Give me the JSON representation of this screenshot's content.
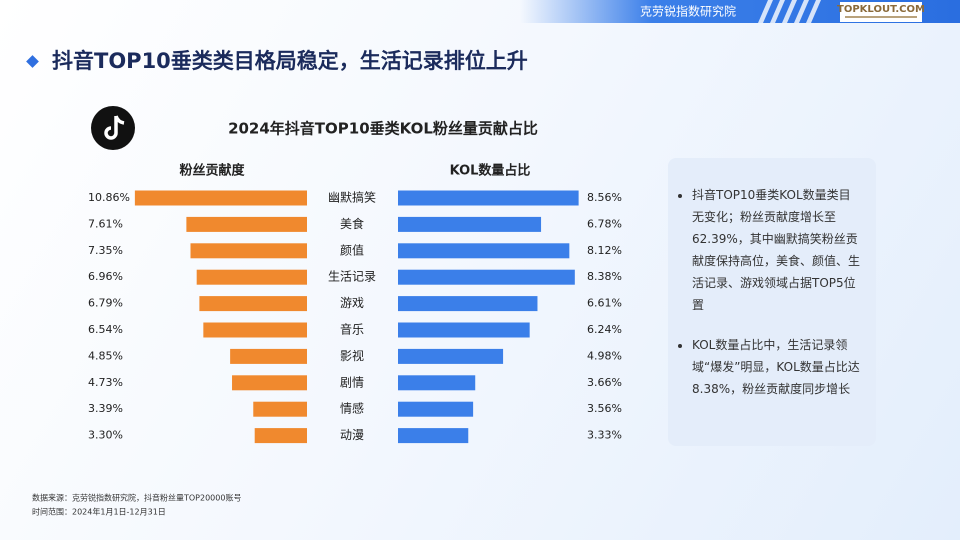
{
  "header": {
    "org": "克劳锐指数研究院",
    "logo": "TOPKLOUT.COM"
  },
  "title": "抖音TOP10垂类类目格局稳定，生活记录排位上升",
  "chart_data": {
    "type": "butterfly",
    "title": "2024年抖音TOP10垂类KOL粉丝量贡献占比",
    "categories": [
      "幽默搞笑",
      "美食",
      "颜值",
      "生活记录",
      "游戏",
      "音乐",
      "影视",
      "剧情",
      "情感",
      "动漫"
    ],
    "series": [
      {
        "name": "粉丝贡献度",
        "color": "#f0892e",
        "values": [
          10.86,
          7.61,
          7.35,
          6.96,
          6.79,
          6.54,
          4.85,
          4.73,
          3.39,
          3.3
        ],
        "value_labels": [
          "10.86%",
          "7.61%",
          "7.35%",
          "6.96%",
          "6.79%",
          "6.54%",
          "4.85%",
          "4.73%",
          "3.39%",
          "3.30%"
        ]
      },
      {
        "name": "KOL数量占比",
        "color": "#3b7fe9",
        "values": [
          8.56,
          6.78,
          8.12,
          8.38,
          6.61,
          6.24,
          4.98,
          3.66,
          3.56,
          3.33
        ],
        "value_labels": [
          "8.56%",
          "6.78%",
          "8.12%",
          "8.38%",
          "6.61%",
          "6.24%",
          "4.98%",
          "3.66%",
          "3.56%",
          "3.33%"
        ]
      }
    ]
  },
  "notes": [
    "抖音TOP10垂类KOL数量类目无变化；粉丝贡献度增长至62.39%，其中幽默搞笑粉丝贡献度保持高位，美食、颜值、生活记录、游戏领域占据TOP5位置",
    "KOL数量占比中，生活记录领域“爆发”明显，KOL数量占比达8.38%，粉丝贡献度同步增长"
  ],
  "footer": [
    "数据来源：克劳锐指数研究院，抖音粉丝量TOP20000账号",
    "时间范围：2024年1月1日-12月31日"
  ]
}
